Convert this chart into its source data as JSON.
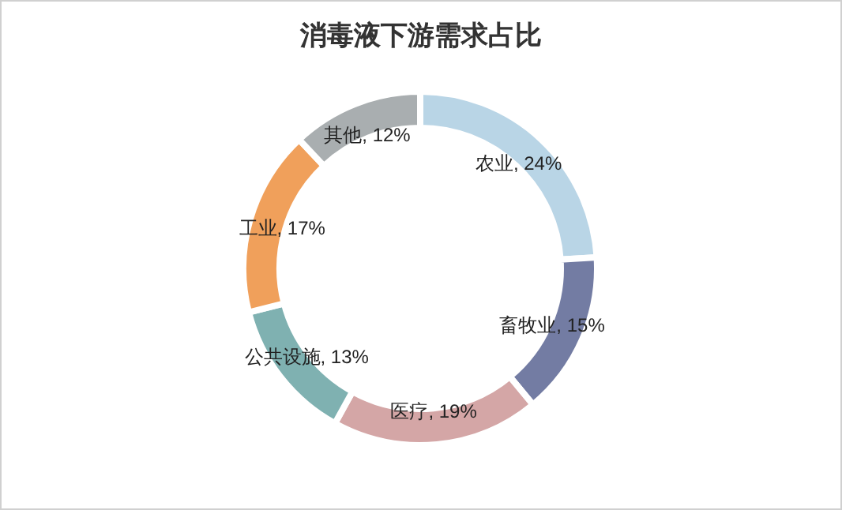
{
  "chart_data": {
    "type": "donut",
    "title": "消毒液下游需求占比",
    "categories": [
      "农业",
      "畜牧业",
      "医疗",
      "公共设施",
      "工业",
      "其他"
    ],
    "values": [
      24,
      15,
      19,
      13,
      17,
      12
    ],
    "colors": [
      "#b9d5e6",
      "#737ca3",
      "#d4a6a6",
      "#7fb1b1",
      "#f0a05b",
      "#a9aeb0"
    ],
    "value_labels": [
      "24%",
      "15%",
      "19%",
      "13%",
      "17%",
      "12%"
    ]
  }
}
